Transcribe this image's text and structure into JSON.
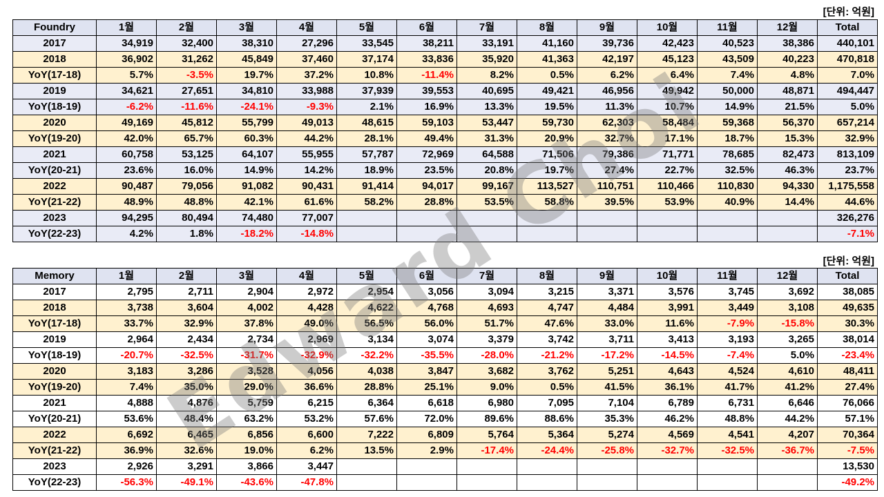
{
  "months": [
    "1월",
    "2월",
    "3월",
    "4월",
    "5월",
    "6월",
    "7월",
    "8월",
    "9월",
    "10월",
    "11월",
    "12월"
  ],
  "total_label": "Total",
  "unit_label": "[단위: 억원]",
  "watermark": "Edward Choi",
  "tables": [
    {
      "title": "Foundry",
      "rows": [
        {
          "label": "2017",
          "kind": "year",
          "tint": "blue",
          "cells": [
            "34,919",
            "32,400",
            "38,310",
            "27,296",
            "33,545",
            "38,211",
            "33,191",
            "41,160",
            "39,736",
            "42,423",
            "40,523",
            "38,386",
            "440,101"
          ]
        },
        {
          "label": "2018",
          "kind": "year",
          "tint": "yellow",
          "cells": [
            "36,902",
            "31,262",
            "45,849",
            "37,460",
            "37,174",
            "33,836",
            "35,920",
            "41,363",
            "42,197",
            "45,123",
            "43,509",
            "40,223",
            "470,818"
          ]
        },
        {
          "label": "YoY(17-18)",
          "kind": "yoy",
          "tint": "yellow",
          "cells": [
            "5.7%",
            "-3.5%",
            "19.7%",
            "37.2%",
            "10.8%",
            "-11.4%",
            "8.2%",
            "0.5%",
            "6.2%",
            "6.4%",
            "7.4%",
            "4.8%",
            "7.0%"
          ]
        },
        {
          "label": "2019",
          "kind": "year",
          "tint": "blue",
          "cells": [
            "34,621",
            "27,651",
            "34,810",
            "33,988",
            "37,939",
            "39,553",
            "40,695",
            "49,421",
            "46,956",
            "49,942",
            "50,000",
            "48,871",
            "494,447"
          ]
        },
        {
          "label": "YoY(18-19)",
          "kind": "yoy",
          "tint": "blue",
          "cells": [
            "-6.2%",
            "-11.6%",
            "-24.1%",
            "-9.3%",
            "2.1%",
            "16.9%",
            "13.3%",
            "19.5%",
            "11.3%",
            "10.7%",
            "14.9%",
            "21.5%",
            "5.0%"
          ]
        },
        {
          "label": "2020",
          "kind": "year",
          "tint": "yellow",
          "cells": [
            "49,169",
            "45,812",
            "55,799",
            "49,013",
            "48,615",
            "59,103",
            "53,447",
            "59,730",
            "62,303",
            "58,484",
            "59,368",
            "56,370",
            "657,214"
          ]
        },
        {
          "label": "YoY(19-20)",
          "kind": "yoy",
          "tint": "yellow",
          "cells": [
            "42.0%",
            "65.7%",
            "60.3%",
            "44.2%",
            "28.1%",
            "49.4%",
            "31.3%",
            "20.9%",
            "32.7%",
            "17.1%",
            "18.7%",
            "15.3%",
            "32.9%"
          ]
        },
        {
          "label": "2021",
          "kind": "year",
          "tint": "blue",
          "cells": [
            "60,758",
            "53,125",
            "64,107",
            "55,955",
            "57,787",
            "72,969",
            "64,588",
            "71,506",
            "79,386",
            "71,771",
            "78,685",
            "82,473",
            "813,109"
          ]
        },
        {
          "label": "YoY(20-21)",
          "kind": "yoy",
          "tint": "blue",
          "cells": [
            "23.6%",
            "16.0%",
            "14.9%",
            "14.2%",
            "18.9%",
            "23.5%",
            "20.8%",
            "19.7%",
            "27.4%",
            "22.7%",
            "32.5%",
            "46.3%",
            "23.7%"
          ]
        },
        {
          "label": "2022",
          "kind": "year",
          "tint": "yellow",
          "cells": [
            "90,487",
            "79,056",
            "91,082",
            "90,431",
            "91,414",
            "94,017",
            "99,167",
            "113,527",
            "110,751",
            "110,466",
            "110,830",
            "94,330",
            "1,175,558"
          ]
        },
        {
          "label": "YoY(21-22)",
          "kind": "yoy",
          "tint": "yellow",
          "cells": [
            "48.9%",
            "48.8%",
            "42.1%",
            "61.6%",
            "58.2%",
            "28.8%",
            "53.5%",
            "58.8%",
            "39.5%",
            "53.9%",
            "40.9%",
            "14.4%",
            "44.6%"
          ]
        },
        {
          "label": "2023",
          "kind": "year",
          "tint": "blue",
          "cells": [
            "94,295",
            "80,494",
            "74,480",
            "77,007",
            "",
            "",
            "",
            "",
            "",
            "",
            "",
            "",
            "326,276"
          ]
        },
        {
          "label": "YoY(22-23)",
          "kind": "yoy",
          "tint": "blue",
          "cells": [
            "4.2%",
            "1.8%",
            "-18.2%",
            "-14.8%",
            "",
            "",
            "",
            "",
            "",
            "",
            "",
            "",
            "-7.1%"
          ]
        }
      ]
    },
    {
      "title": "Memory",
      "rows": [
        {
          "label": "2017",
          "kind": "year",
          "tint": "white",
          "cells": [
            "2,795",
            "2,711",
            "2,904",
            "2,972",
            "2,954",
            "3,056",
            "3,094",
            "3,215",
            "3,371",
            "3,576",
            "3,745",
            "3,692",
            "38,085"
          ]
        },
        {
          "label": "2018",
          "kind": "year",
          "tint": "yellow",
          "cells": [
            "3,738",
            "3,604",
            "4,002",
            "4,428",
            "4,622",
            "4,768",
            "4,693",
            "4,747",
            "4,484",
            "3,991",
            "3,449",
            "3,108",
            "49,635"
          ]
        },
        {
          "label": "YoY(17-18)",
          "kind": "yoy",
          "tint": "yellow",
          "cells": [
            "33.7%",
            "32.9%",
            "37.8%",
            "49.0%",
            "56.5%",
            "56.0%",
            "51.7%",
            "47.6%",
            "33.0%",
            "11.6%",
            "-7.9%",
            "-15.8%",
            "30.3%"
          ]
        },
        {
          "label": "2019",
          "kind": "year",
          "tint": "white",
          "cells": [
            "2,964",
            "2,434",
            "2,734",
            "2,969",
            "3,134",
            "3,074",
            "3,379",
            "3,742",
            "3,711",
            "3,413",
            "3,193",
            "3,265",
            "38,014"
          ]
        },
        {
          "label": "YoY(18-19)",
          "kind": "yoy",
          "tint": "white",
          "cells": [
            "-20.7%",
            "-32.5%",
            "-31.7%",
            "-32.9%",
            "-32.2%",
            "-35.5%",
            "-28.0%",
            "-21.2%",
            "-17.2%",
            "-14.5%",
            "-7.4%",
            "5.0%",
            "-23.4%"
          ]
        },
        {
          "label": "2020",
          "kind": "year",
          "tint": "yellow",
          "cells": [
            "3,183",
            "3,286",
            "3,528",
            "4,056",
            "4,038",
            "3,847",
            "3,682",
            "3,762",
            "5,251",
            "4,643",
            "4,524",
            "4,610",
            "48,411"
          ]
        },
        {
          "label": "YoY(19-20)",
          "kind": "yoy",
          "tint": "yellow",
          "cells": [
            "7.4%",
            "35.0%",
            "29.0%",
            "36.6%",
            "28.8%",
            "25.1%",
            "9.0%",
            "0.5%",
            "41.5%",
            "36.1%",
            "41.7%",
            "41.2%",
            "27.4%"
          ]
        },
        {
          "label": "2021",
          "kind": "year",
          "tint": "white",
          "cells": [
            "4,888",
            "4,876",
            "5,759",
            "6,215",
            "6,364",
            "6,618",
            "6,980",
            "7,095",
            "7,104",
            "6,789",
            "6,731",
            "6,646",
            "76,066"
          ]
        },
        {
          "label": "YoY(20-21)",
          "kind": "yoy",
          "tint": "white",
          "cells": [
            "53.6%",
            "48.4%",
            "63.2%",
            "53.2%",
            "57.6%",
            "72.0%",
            "89.6%",
            "88.6%",
            "35.3%",
            "46.2%",
            "48.8%",
            "44.2%",
            "57.1%"
          ]
        },
        {
          "label": "2022",
          "kind": "year",
          "tint": "yellow",
          "cells": [
            "6,692",
            "6,465",
            "6,856",
            "6,600",
            "7,222",
            "6,809",
            "5,764",
            "5,364",
            "5,274",
            "4,569",
            "4,541",
            "4,207",
            "70,364"
          ]
        },
        {
          "label": "YoY(21-22)",
          "kind": "yoy",
          "tint": "yellow",
          "cells": [
            "36.9%",
            "32.6%",
            "19.0%",
            "6.2%",
            "13.5%",
            "2.9%",
            "-17.4%",
            "-24.4%",
            "-25.8%",
            "-32.7%",
            "-32.5%",
            "-36.7%",
            "-7.5%"
          ]
        },
        {
          "label": "2023",
          "kind": "year",
          "tint": "white",
          "cells": [
            "2,926",
            "3,291",
            "3,866",
            "3,447",
            "",
            "",
            "",
            "",
            "",
            "",
            "",
            "",
            "13,530"
          ]
        },
        {
          "label": "YoY(22-23)",
          "kind": "yoy",
          "tint": "white",
          "cells": [
            "-56.3%",
            "-49.1%",
            "-43.6%",
            "-47.8%",
            "",
            "",
            "",
            "",
            "",
            "",
            "",
            "",
            "-49.2%"
          ]
        }
      ]
    }
  ]
}
